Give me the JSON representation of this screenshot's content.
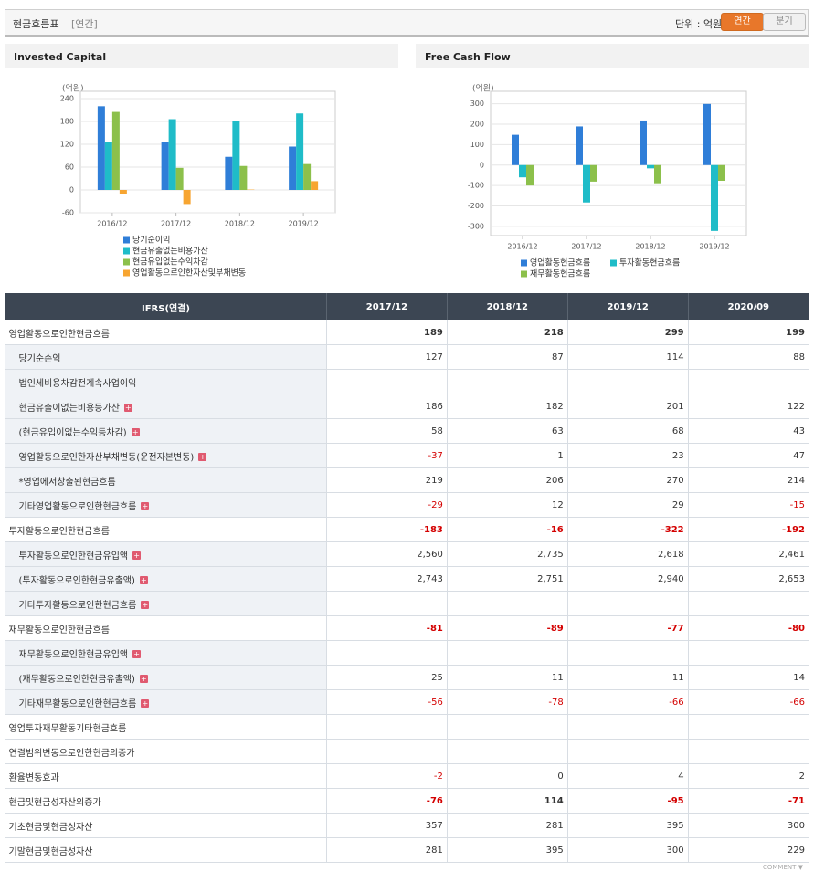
{
  "header": {
    "title": "현금흐름표",
    "subtitle": "[연간]",
    "unit": "단위 : 억원",
    "tabs": [
      "연간",
      "분기"
    ],
    "active_tab": 0
  },
  "chart_data": [
    {
      "type": "bar",
      "title": "Invested Capital",
      "y_label": "(억원)",
      "categories": [
        "2016/12",
        "2017/12",
        "2018/12",
        "2019/12"
      ],
      "series": [
        {
          "name": "당기순이익",
          "color": "#2f7ed8",
          "values": [
            220,
            127,
            87,
            114
          ]
        },
        {
          "name": "현금유출없는비용가산",
          "color": "#1fbcc8",
          "values": [
            125,
            186,
            182,
            201
          ]
        },
        {
          "name": "현금유입없는수익차감",
          "color": "#8cc04b",
          "values": [
            205,
            58,
            63,
            68
          ]
        },
        {
          "name": "영업활동으로인한자산및부채변동",
          "color": "#f7a531",
          "values": [
            -10,
            -37,
            1,
            23
          ]
        }
      ],
      "ylim": [
        -60,
        240
      ],
      "yticks": [
        -60,
        0,
        60,
        120,
        180,
        240
      ],
      "grid": true
    },
    {
      "type": "bar",
      "title": "Free Cash Flow",
      "y_label": "(억원)",
      "categories": [
        "2016/12",
        "2017/12",
        "2018/12",
        "2019/12"
      ],
      "series": [
        {
          "name": "영업활동현금흐름",
          "color": "#2f7ed8",
          "values": [
            148,
            189,
            218,
            299
          ]
        },
        {
          "name": "투자활동현금흐름",
          "color": "#1fbcc8",
          "values": [
            -60,
            -183,
            -16,
            -322
          ]
        },
        {
          "name": "재무활동현금흐름",
          "color": "#8cc04b",
          "values": [
            -100,
            -81,
            -89,
            -77
          ]
        }
      ],
      "ylim": [
        -345,
        325
      ],
      "yticks": [
        -300,
        -200,
        -100,
        0,
        100,
        200,
        300
      ],
      "grid": true
    }
  ],
  "table": {
    "columns": [
      "IFRS(연결)",
      "2017/12",
      "2018/12",
      "2019/12",
      "2020/09"
    ],
    "rows": [
      {
        "label": "영업활동으로인한현금흐름",
        "bold": true,
        "values": [
          189,
          218,
          299,
          199
        ]
      },
      {
        "label": "당기순손익",
        "indent": true,
        "values": [
          127,
          87,
          114,
          88
        ]
      },
      {
        "label": "법인세비용차감전계속사업이익",
        "indent": true,
        "values": [
          null,
          null,
          null,
          null
        ]
      },
      {
        "label": "현금유출이없는비용등가산",
        "indent": true,
        "expand": true,
        "values": [
          186,
          182,
          201,
          122
        ]
      },
      {
        "label": "(현금유입이없는수익등차감)",
        "indent": true,
        "expand": true,
        "values": [
          58,
          63,
          68,
          43
        ]
      },
      {
        "label": "영업활동으로인한자산부채변동(운전자본변동)",
        "indent": true,
        "expand": true,
        "values": [
          -37,
          1,
          23,
          47
        ]
      },
      {
        "label": "*영업에서창출된현금흐름",
        "indent": true,
        "values": [
          219,
          206,
          270,
          214
        ]
      },
      {
        "label": "기타영업활동으로인한현금흐름",
        "indent": true,
        "expand": true,
        "values": [
          -29,
          12,
          29,
          -15
        ]
      },
      {
        "label": "투자활동으로인한현금흐름",
        "bold": true,
        "values": [
          -183,
          -16,
          -322,
          -192
        ]
      },
      {
        "label": "투자활동으로인한현금유입액",
        "indent": true,
        "expand": true,
        "values": [
          "2,560",
          "2,735",
          "2,618",
          "2,461"
        ]
      },
      {
        "label": "(투자활동으로인한현금유출액)",
        "indent": true,
        "expand": true,
        "values": [
          "2,743",
          "2,751",
          "2,940",
          "2,653"
        ]
      },
      {
        "label": "기타투자활동으로인한현금흐름",
        "indent": true,
        "expand": true,
        "values": [
          null,
          null,
          null,
          null
        ]
      },
      {
        "label": "재무활동으로인한현금흐름",
        "bold": true,
        "values": [
          -81,
          -89,
          -77,
          -80
        ]
      },
      {
        "label": "재무활동으로인한현금유입액",
        "indent": true,
        "expand": true,
        "values": [
          null,
          null,
          null,
          null
        ]
      },
      {
        "label": "(재무활동으로인한현금유출액)",
        "indent": true,
        "expand": true,
        "values": [
          25,
          11,
          11,
          14
        ]
      },
      {
        "label": "기타재무활동으로인한현금흐름",
        "indent": true,
        "expand": true,
        "values": [
          -56,
          -78,
          -66,
          -66
        ]
      },
      {
        "label": "영업투자재무활동기타현금흐름",
        "values": [
          null,
          null,
          null,
          null
        ]
      },
      {
        "label": "연결범위변동으로인한현금의증가",
        "values": [
          null,
          null,
          null,
          null
        ]
      },
      {
        "label": "환율변동효과",
        "values": [
          -2,
          0,
          4,
          2
        ]
      },
      {
        "label": "현금및현금성자산의증가",
        "bold": true,
        "values": [
          -76,
          114,
          -95,
          -71
        ]
      },
      {
        "label": "기초현금및현금성자산",
        "values": [
          357,
          281,
          395,
          300
        ]
      },
      {
        "label": "기말현금및현금성자산",
        "values": [
          281,
          395,
          300,
          229
        ]
      }
    ]
  },
  "footer": "COMMENT"
}
